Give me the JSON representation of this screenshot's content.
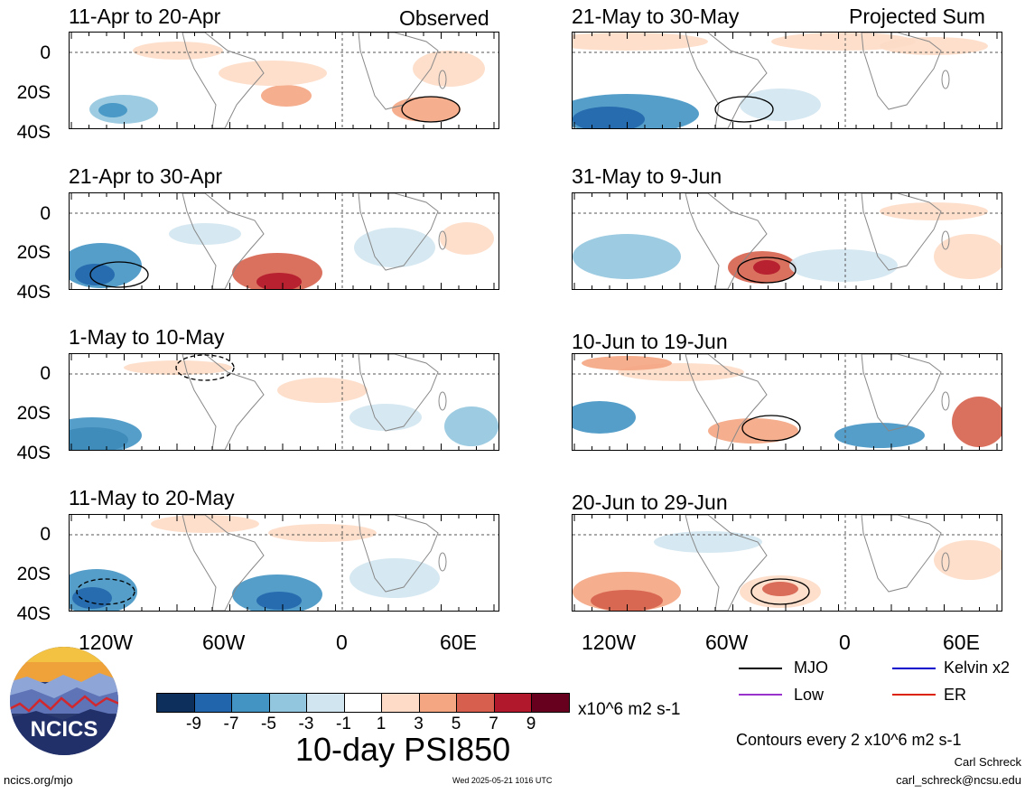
{
  "header": {
    "left_label": "Observed",
    "right_label": "Projected Sum"
  },
  "panels_left": [
    {
      "title": "11-Apr to 20-Apr"
    },
    {
      "title": "21-Apr to 30-Apr"
    },
    {
      "title": "1-May to 10-May"
    },
    {
      "title": "11-May to 20-May"
    }
  ],
  "panels_right": [
    {
      "title": "21-May to 30-May"
    },
    {
      "title": "31-May to 9-Jun"
    },
    {
      "title": "10-Jun to 19-Jun"
    },
    {
      "title": "20-Jun to 29-Jun"
    }
  ],
  "lat_labels": [
    "0",
    "20S",
    "40S"
  ],
  "lon_labels": [
    "120W",
    "60W",
    "0",
    "60E"
  ],
  "colorbar": {
    "colors": [
      "#0c2f5c",
      "#2166ac",
      "#4393c3",
      "#92c5de",
      "#d1e5f0",
      "#ffffff",
      "#fddbc7",
      "#f4a582",
      "#d6604d",
      "#b2182b",
      "#67001f"
    ],
    "tick_labels": [
      "-9",
      "-7",
      "-5",
      "-3",
      "-1",
      "1",
      "3",
      "5",
      "7",
      "9"
    ],
    "units": "x10^6 m2 s-1"
  },
  "legend": {
    "items": [
      {
        "label": "MJO",
        "color": "#000000"
      },
      {
        "label": "Kelvin x2",
        "color": "#0000cc"
      },
      {
        "label": "Low",
        "color": "#9932cc"
      },
      {
        "label": "ER",
        "color": "#dd2200"
      }
    ],
    "contour_note": "Contours every 2 x10^6 m2 s-1"
  },
  "main_title": "10-day PSI850",
  "logo_text": "NCICS",
  "footer": {
    "url": "ncics.org/mjo",
    "timestamp": "Wed 2025-05-21 1016 UTC",
    "author": "Carl Schreck",
    "email": "carl_schreck@ncsu.edu"
  }
}
